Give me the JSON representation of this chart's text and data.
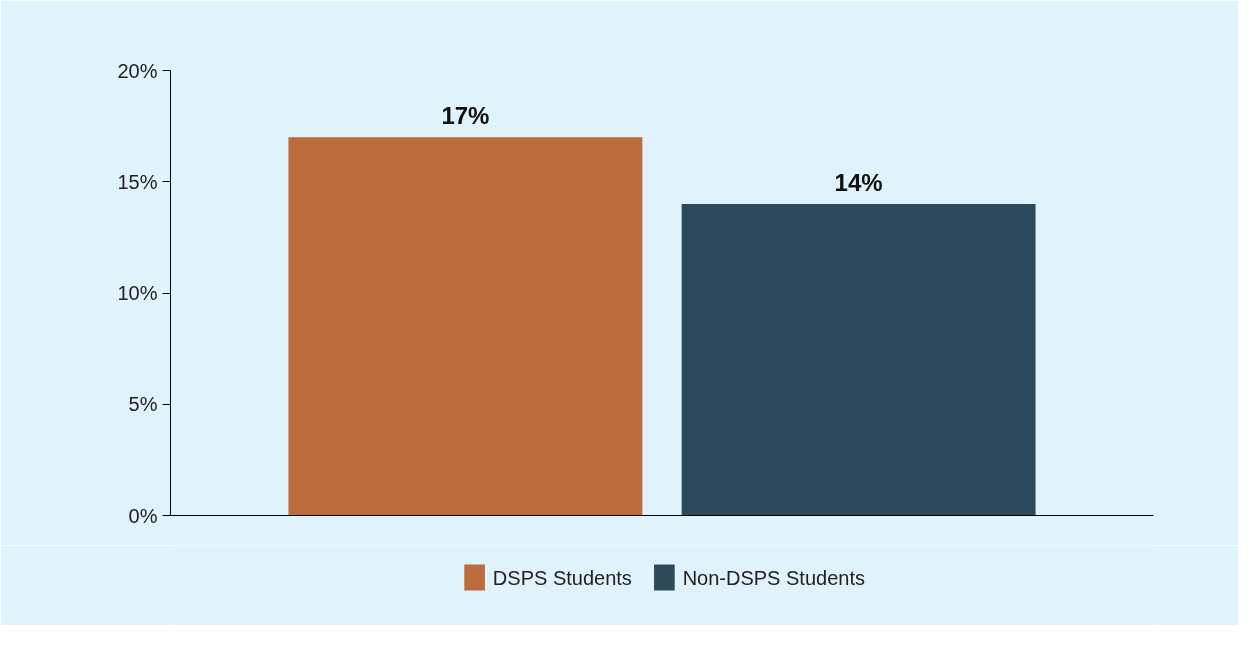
{
  "chart_data": {
    "type": "bar",
    "categories": [
      null
    ],
    "series": [
      {
        "name": "DSPS Students",
        "color": "#bc6c3c",
        "values": [
          17
        ],
        "value_labels": [
          "17%"
        ]
      },
      {
        "name": "Non-DSPS Students",
        "color": "#2c4a5a",
        "values": [
          14
        ],
        "value_labels": [
          "14%"
        ]
      }
    ],
    "ylim": [
      0,
      20
    ],
    "yticks": [
      {
        "value": 0,
        "label": "0%"
      },
      {
        "value": 5,
        "label": "5%"
      },
      {
        "value": 10,
        "label": "10%"
      },
      {
        "value": 15,
        "label": "15%"
      },
      {
        "value": 20,
        "label": "20%"
      }
    ],
    "grid": false,
    "legend": "bottom",
    "tick_labels": "y"
  }
}
